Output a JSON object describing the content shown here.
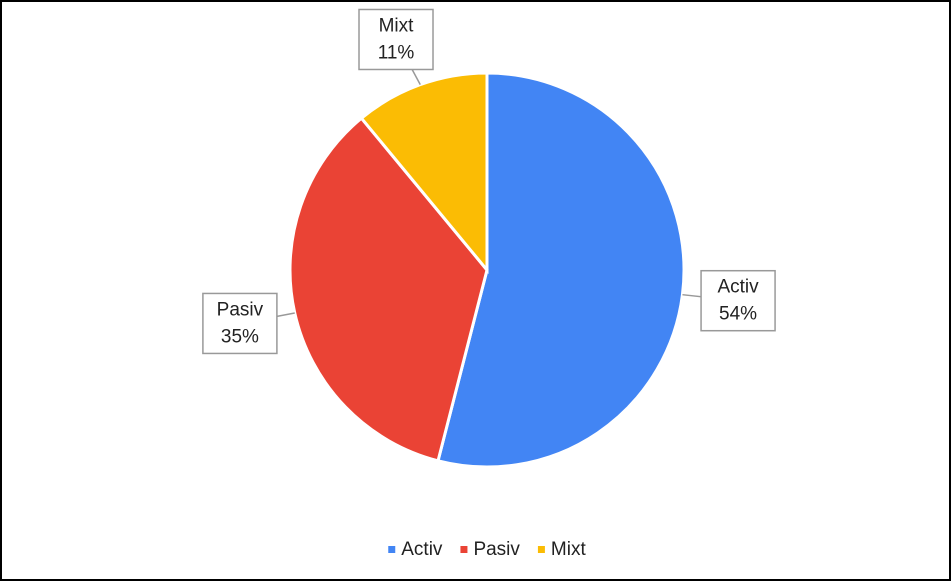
{
  "chart_data": {
    "type": "pie",
    "categories": [
      "Activ",
      "Pasiv",
      "Mixt"
    ],
    "values": [
      54,
      35,
      11
    ],
    "value_labels": [
      "54%",
      "35%",
      "11%"
    ],
    "colors": [
      "#4285f4",
      "#ea4335",
      "#fbbc04"
    ],
    "legend": "bottom"
  }
}
